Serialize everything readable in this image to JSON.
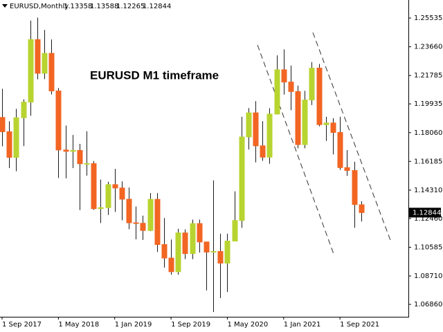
{
  "chart_data": {
    "type": "candlestick",
    "symbol": "EURUSD,Monthly",
    "quote": [
      1.13358,
      1.13588,
      1.12265,
      1.12844
    ],
    "annotation": "EURUSD M1 timeframe",
    "categories": [
      "1 Sep 2017",
      null,
      null,
      null,
      null,
      null,
      null,
      null,
      "1 May 2018",
      null,
      null,
      null,
      null,
      null,
      null,
      null,
      "1 Jan 2019",
      null,
      null,
      null,
      null,
      null,
      null,
      null,
      "1 Sep 2019",
      null,
      null,
      null,
      null,
      null,
      null,
      null,
      "1 May 2020",
      null,
      null,
      null,
      null,
      null,
      null,
      null,
      "1 Jan 2021",
      null,
      null,
      null,
      null,
      null,
      null,
      null,
      "1 Sep 2021",
      null,
      null,
      null
    ],
    "open": [
      1.1905,
      1.1812,
      1.1645,
      1.1903,
      1.2005,
      1.2413,
      1.2193,
      1.2323,
      1.2078,
      1.1693,
      1.1684,
      1.169,
      1.1603,
      1.1604,
      1.131,
      1.1317,
      1.1467,
      1.1445,
      1.1372,
      1.1218,
      1.1215,
      1.1168,
      1.1371,
      1.1076,
      1.0988,
      1.0899,
      1.1152,
      1.1017,
      1.1213,
      1.1093,
      1.1027,
      1.1031,
      1.0955,
      1.1099,
      1.1233,
      1.1778,
      1.1935,
      1.172,
      1.1646,
      1.1927,
      1.2216,
      1.2136,
      1.2074,
      1.1728,
      1.2019,
      1.2227,
      1.1858,
      1.1869,
      1.1807,
      1.1578,
      1.1559,
      1.13358
    ],
    "high": [
      1.2092,
      1.188,
      1.1961,
      1.2023,
      1.2537,
      1.2556,
      1.2476,
      1.2414,
      1.2097,
      1.1852,
      1.1791,
      1.1733,
      1.1815,
      1.1621,
      1.15,
      1.1486,
      1.157,
      1.1488,
      1.1448,
      1.1324,
      1.1265,
      1.1412,
      1.1412,
      1.1249,
      1.1109,
      1.1179,
      1.1175,
      1.1239,
      1.1239,
      1.1095,
      1.1495,
      1.1147,
      1.1147,
      1.1423,
      1.1909,
      1.1966,
      1.2011,
      1.1881,
      1.1965,
      1.231,
      1.2349,
      1.2243,
      1.2113,
      1.2079,
      1.2266,
      1.2254,
      1.1909,
      1.19,
      1.1909,
      1.1692,
      1.1616,
      1.13588
    ],
    "low": [
      1.1717,
      1.1575,
      1.1554,
      1.1718,
      1.1916,
      1.2154,
      1.2155,
      1.2055,
      1.151,
      1.1508,
      1.1575,
      1.1301,
      1.1526,
      1.1302,
      1.1216,
      1.1269,
      1.1289,
      1.1234,
      1.1176,
      1.111,
      1.1106,
      1.1163,
      1.1028,
      1.0926,
      1.0879,
      1.0879,
      1.0981,
      1.0981,
      1.1024,
      1.0777,
      1.0636,
      1.0727,
      1.0767,
      1.1097,
      1.1185,
      1.1696,
      1.1612,
      1.1622,
      1.1603,
      1.1925,
      1.2054,
      1.1952,
      1.1704,
      1.1704,
      1.1986,
      1.1847,
      1.1752,
      1.1664,
      1.1563,
      1.1524,
      1.1186,
      1.12265
    ],
    "close": [
      1.1812,
      1.1645,
      1.1903,
      1.2005,
      1.2413,
      1.2193,
      1.2323,
      1.2078,
      1.1693,
      1.1684,
      1.169,
      1.1603,
      1.1604,
      1.131,
      1.1317,
      1.1467,
      1.1445,
      1.1372,
      1.1218,
      1.1215,
      1.1168,
      1.1371,
      1.1076,
      1.0988,
      1.0899,
      1.1152,
      1.1017,
      1.1213,
      1.1093,
      1.1027,
      1.1031,
      1.0955,
      1.1099,
      1.1233,
      1.1778,
      1.1935,
      1.172,
      1.1646,
      1.1927,
      1.2216,
      1.2136,
      1.2074,
      1.1728,
      1.2019,
      1.2227,
      1.1858,
      1.1869,
      1.1807,
      1.1578,
      1.1559,
      1.1337,
      1.12844
    ],
    "up_color": "#b8d430",
    "down_color": "#f26522",
    "wick_color": "#1a1a1a",
    "ylim": [
      1.0605,
      1.2671
    ],
    "yticks": [
      1.25535,
      {
        "value": 1.2366,
        "label": "1.23660"
      },
      1.21785,
      1.19935,
      {
        "value": 1.1806,
        "label": "1.18060"
      },
      1.16185,
      {
        "value": 1.1431,
        "label": "1.14310"
      },
      {
        "value": 1.1246,
        "label": "1.12460"
      },
      1.10585,
      {
        "value": 1.0871,
        "label": "1.08710"
      },
      {
        "value": 1.0686,
        "label": "1.06860"
      }
    ]
  }
}
